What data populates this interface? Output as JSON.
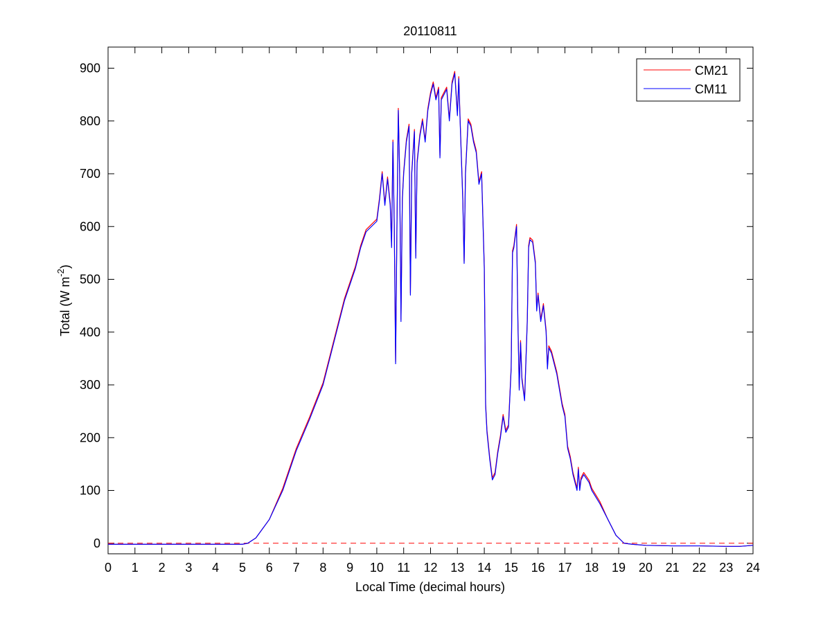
{
  "chart_data": {
    "type": "line",
    "title": "20110811",
    "xlabel": "Local Time (decimal hours)",
    "ylabel_main": "Total (W m",
    "ylabel_sup": "-2",
    "ylabel_tail": ")",
    "xlim": [
      0,
      24
    ],
    "ylim": [
      -20,
      940
    ],
    "xticks": [
      0,
      1,
      2,
      3,
      4,
      5,
      6,
      7,
      8,
      9,
      10,
      11,
      12,
      13,
      14,
      15,
      16,
      17,
      18,
      19,
      20,
      21,
      22,
      23,
      24
    ],
    "yticks": [
      0,
      100,
      200,
      300,
      400,
      500,
      600,
      700,
      800,
      900
    ],
    "grid": false,
    "legend_position": "top-right",
    "zero_line": {
      "y": 0,
      "color": "#ff0000",
      "style": "dashed"
    },
    "series": [
      {
        "name": "CM21",
        "color": "#ff0000",
        "offset": 4
      },
      {
        "name": "CM11",
        "color": "#0000ff",
        "offset": 0,
        "points": [
          [
            0,
            -2
          ],
          [
            5,
            -2
          ],
          [
            5.2,
            0
          ],
          [
            5.5,
            10
          ],
          [
            6,
            45
          ],
          [
            6.5,
            100
          ],
          [
            7,
            175
          ],
          [
            7.5,
            235
          ],
          [
            8,
            300
          ],
          [
            8.3,
            360
          ],
          [
            8.6,
            420
          ],
          [
            8.8,
            460
          ],
          [
            9,
            490
          ],
          [
            9.2,
            520
          ],
          [
            9.4,
            560
          ],
          [
            9.6,
            590
          ],
          [
            9.8,
            600
          ],
          [
            10,
            610
          ],
          [
            10.1,
            650
          ],
          [
            10.2,
            700
          ],
          [
            10.3,
            640
          ],
          [
            10.4,
            690
          ],
          [
            10.5,
            640
          ],
          [
            10.55,
            560
          ],
          [
            10.6,
            760
          ],
          [
            10.65,
            600
          ],
          [
            10.7,
            340
          ],
          [
            10.75,
            600
          ],
          [
            10.8,
            820
          ],
          [
            10.85,
            700
          ],
          [
            10.9,
            420
          ],
          [
            10.95,
            650
          ],
          [
            11,
            700
          ],
          [
            11.1,
            760
          ],
          [
            11.2,
            790
          ],
          [
            11.25,
            470
          ],
          [
            11.3,
            700
          ],
          [
            11.4,
            780
          ],
          [
            11.45,
            540
          ],
          [
            11.5,
            720
          ],
          [
            11.6,
            770
          ],
          [
            11.7,
            800
          ],
          [
            11.8,
            760
          ],
          [
            11.9,
            820
          ],
          [
            12,
            850
          ],
          [
            12.1,
            870
          ],
          [
            12.2,
            840
          ],
          [
            12.3,
            860
          ],
          [
            12.35,
            730
          ],
          [
            12.4,
            840
          ],
          [
            12.5,
            850
          ],
          [
            12.6,
            860
          ],
          [
            12.7,
            800
          ],
          [
            12.8,
            870
          ],
          [
            12.9,
            890
          ],
          [
            13,
            810
          ],
          [
            13.05,
            880
          ],
          [
            13.1,
            800
          ],
          [
            13.2,
            650
          ],
          [
            13.25,
            530
          ],
          [
            13.3,
            700
          ],
          [
            13.4,
            800
          ],
          [
            13.5,
            790
          ],
          [
            13.6,
            760
          ],
          [
            13.7,
            740
          ],
          [
            13.8,
            680
          ],
          [
            13.9,
            700
          ],
          [
            14,
            520
          ],
          [
            14.05,
            260
          ],
          [
            14.1,
            210
          ],
          [
            14.2,
            160
          ],
          [
            14.3,
            120
          ],
          [
            14.4,
            130
          ],
          [
            14.5,
            170
          ],
          [
            14.6,
            200
          ],
          [
            14.7,
            240
          ],
          [
            14.8,
            210
          ],
          [
            14.9,
            220
          ],
          [
            15,
            330
          ],
          [
            15.05,
            550
          ],
          [
            15.1,
            560
          ],
          [
            15.2,
            600
          ],
          [
            15.25,
            420
          ],
          [
            15.3,
            290
          ],
          [
            15.35,
            380
          ],
          [
            15.4,
            310
          ],
          [
            15.5,
            270
          ],
          [
            15.6,
            420
          ],
          [
            15.65,
            560
          ],
          [
            15.7,
            575
          ],
          [
            15.8,
            570
          ],
          [
            15.9,
            530
          ],
          [
            15.95,
            440
          ],
          [
            16,
            470
          ],
          [
            16.1,
            420
          ],
          [
            16.2,
            450
          ],
          [
            16.3,
            400
          ],
          [
            16.35,
            330
          ],
          [
            16.4,
            370
          ],
          [
            16.5,
            360
          ],
          [
            16.7,
            320
          ],
          [
            16.9,
            260
          ],
          [
            17,
            240
          ],
          [
            17.1,
            180
          ],
          [
            17.2,
            160
          ],
          [
            17.3,
            130
          ],
          [
            17.4,
            110
          ],
          [
            17.45,
            100
          ],
          [
            17.5,
            140
          ],
          [
            17.55,
            100
          ],
          [
            17.6,
            120
          ],
          [
            17.7,
            130
          ],
          [
            17.9,
            115
          ],
          [
            18,
            100
          ],
          [
            18.3,
            75
          ],
          [
            18.6,
            45
          ],
          [
            18.9,
            15
          ],
          [
            19.2,
            0
          ],
          [
            19.5,
            -2
          ],
          [
            20,
            -4
          ],
          [
            21,
            -5
          ],
          [
            22,
            -5
          ],
          [
            23,
            -6
          ],
          [
            23.5,
            -6
          ],
          [
            24,
            -4
          ]
        ]
      }
    ]
  }
}
